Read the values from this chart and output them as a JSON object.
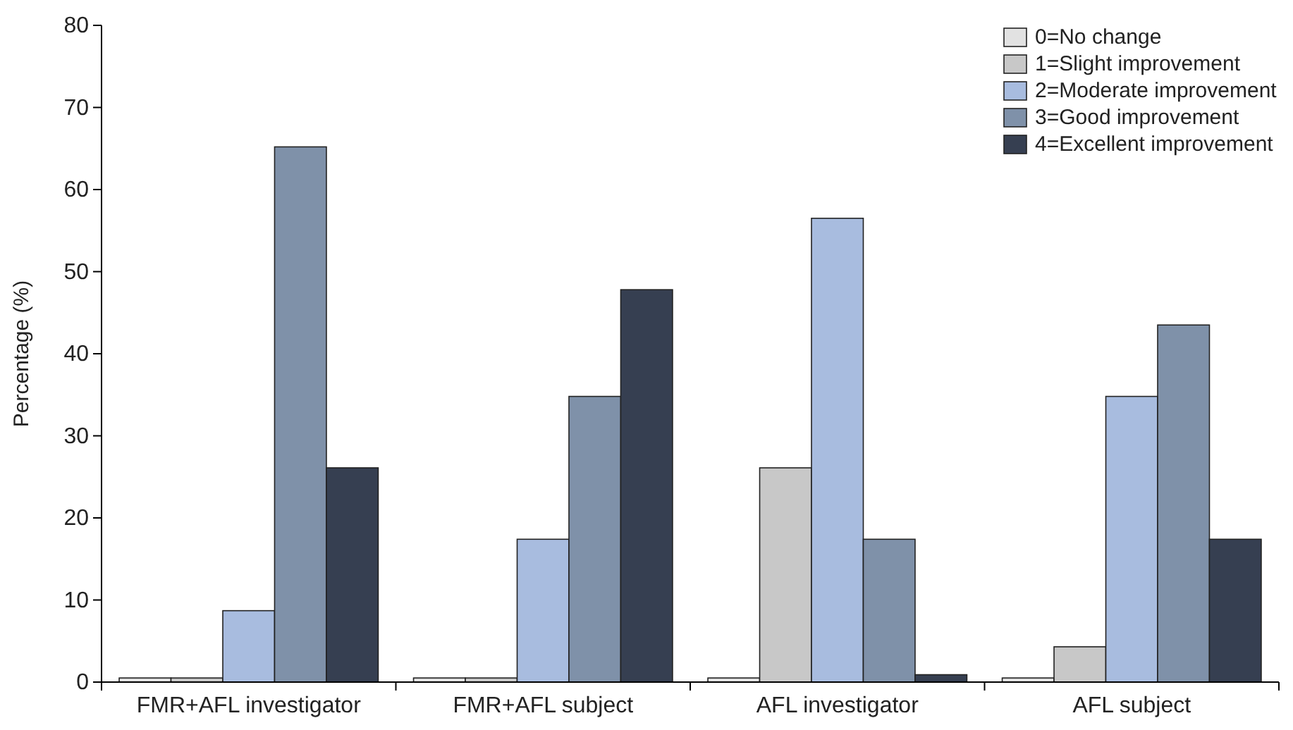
{
  "chart_data": {
    "type": "bar",
    "ylabel": "Percentage (%)",
    "categories": [
      "FMR+AFL investigator",
      "FMR+AFL subject",
      "AFL investigator",
      "AFL subject"
    ],
    "series": [
      {
        "name": "0=No change",
        "color": "#e2e2e2",
        "values": [
          0.5,
          0.5,
          0.5,
          0.5
        ]
      },
      {
        "name": "1=Slight improvement",
        "color": "#c8c8c8",
        "values": [
          0.5,
          0.5,
          26.1,
          4.3
        ]
      },
      {
        "name": "2=Moderate improvement",
        "color": "#a8bcdf",
        "values": [
          8.7,
          17.4,
          56.5,
          34.8
        ]
      },
      {
        "name": "3=Good improvement",
        "color": "#7f91a9",
        "values": [
          65.2,
          34.8,
          17.4,
          43.5
        ]
      },
      {
        "name": "4=Excellent improvement",
        "color": "#363f51",
        "values": [
          26.1,
          47.8,
          0.9,
          17.4
        ]
      }
    ],
    "ylim": [
      0,
      80
    ],
    "yticks": [
      0,
      10,
      20,
      30,
      40,
      50,
      60,
      70,
      80
    ],
    "grid": false,
    "legend": "top right"
  }
}
